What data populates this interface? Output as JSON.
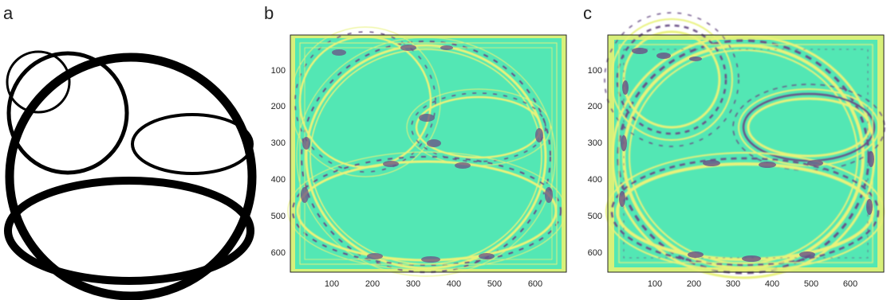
{
  "panels": {
    "a": {
      "letter": "a"
    },
    "b": {
      "letter": "b",
      "x_ticks": [
        "100",
        "200",
        "300",
        "400",
        "500",
        "600"
      ],
      "y_ticks": [
        "100",
        "200",
        "300",
        "400",
        "500",
        "600"
      ]
    },
    "c": {
      "letter": "c",
      "x_ticks": [
        "100",
        "200",
        "300",
        "400",
        "500",
        "600"
      ],
      "y_ticks": [
        "100",
        "200",
        "300",
        "400",
        "500",
        "600"
      ]
    }
  },
  "colors": {
    "field_background": "#53e7b4",
    "frame_yellow": "#d8f07a",
    "wave_dark": "#6b4f86",
    "wave_light": "#e8f27a",
    "ink": "#000000"
  }
}
